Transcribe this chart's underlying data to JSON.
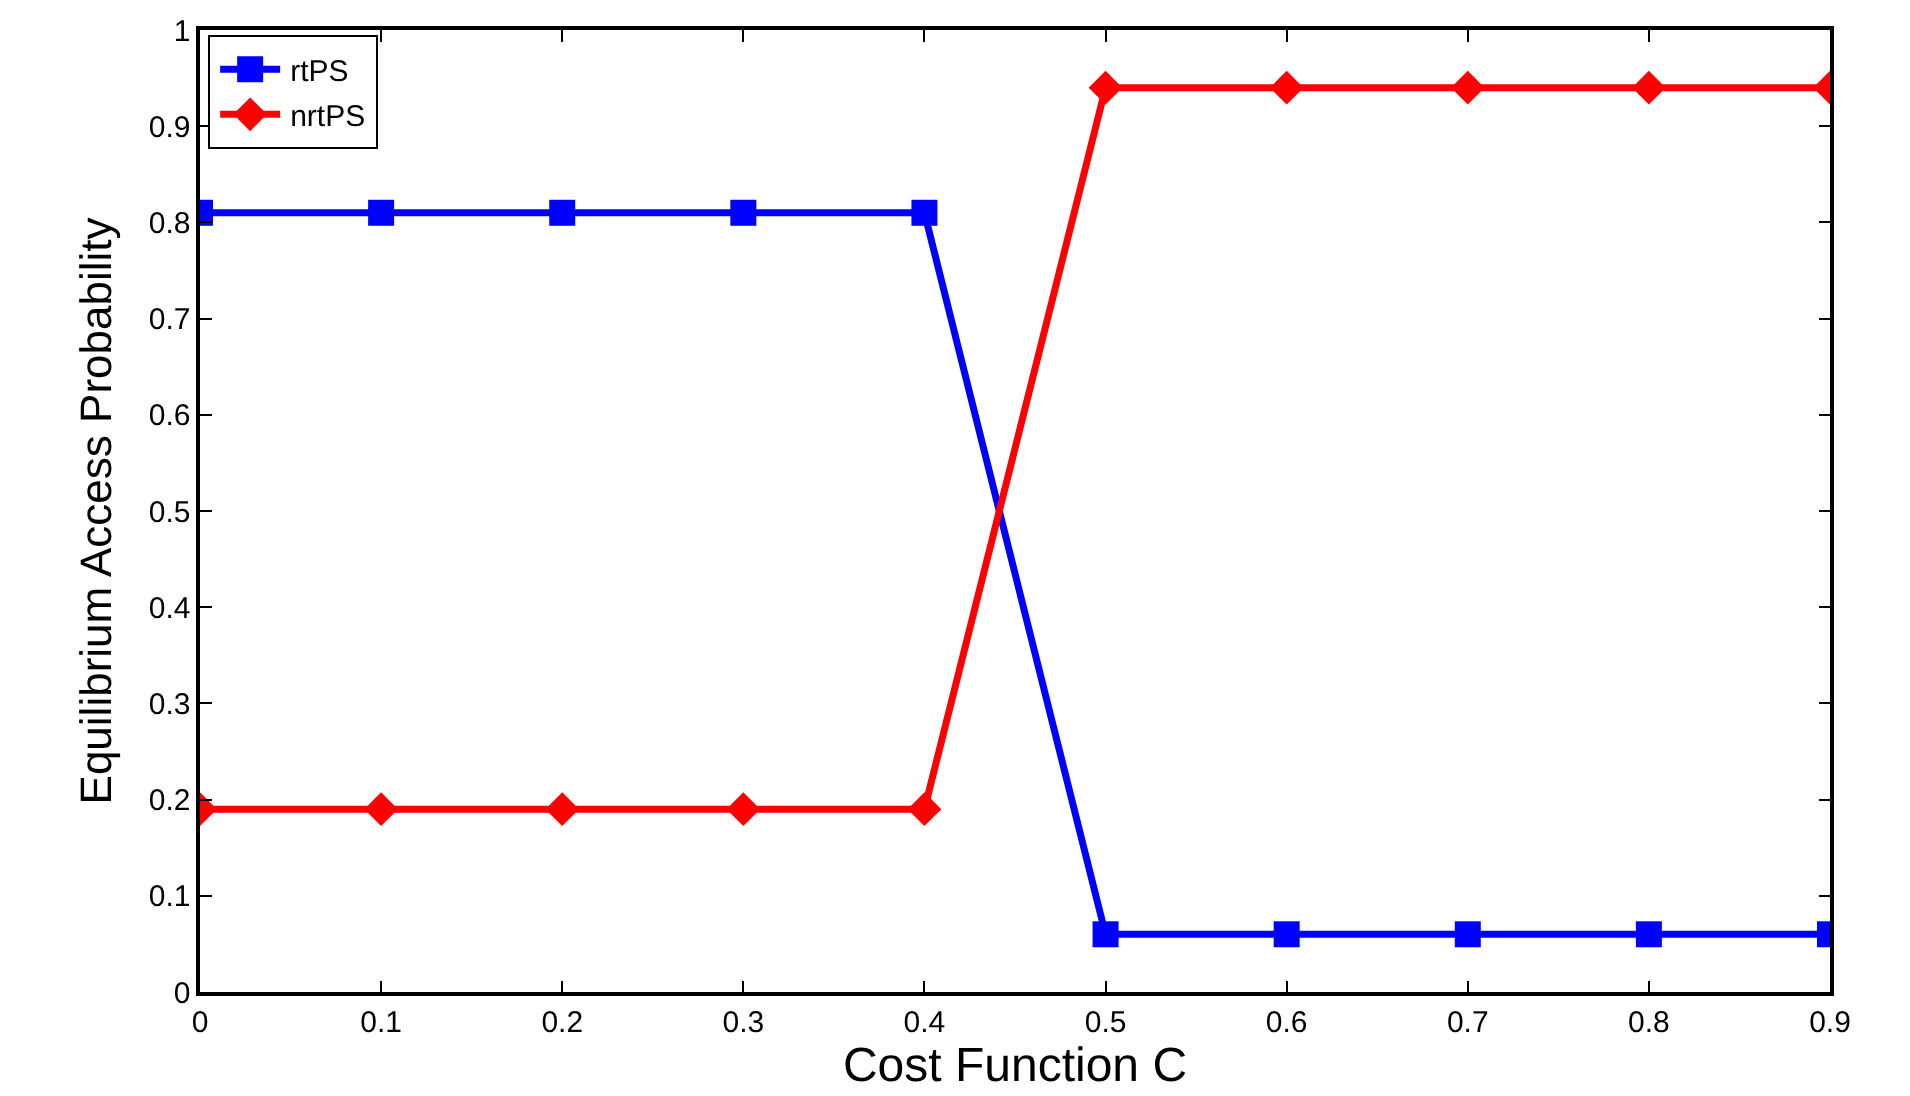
{
  "chart_data": {
    "type": "line",
    "xlabel": "Cost Function C",
    "ylabel": "Equilibrium Access Probability",
    "x": [
      0,
      0.1,
      0.2,
      0.3,
      0.4,
      0.5,
      0.6,
      0.7,
      0.8,
      0.9
    ],
    "series": [
      {
        "name": "rtPS",
        "color": "#0000ff",
        "marker": "square",
        "values": [
          0.81,
          0.81,
          0.81,
          0.81,
          0.81,
          0.06,
          0.06,
          0.06,
          0.06,
          0.06
        ]
      },
      {
        "name": "nrtPS",
        "color": "#ff0000",
        "marker": "diamond",
        "values": [
          0.19,
          0.19,
          0.19,
          0.19,
          0.19,
          0.94,
          0.94,
          0.94,
          0.94,
          0.94
        ]
      }
    ],
    "xlim": [
      0,
      0.9
    ],
    "xticks": [
      0,
      0.1,
      0.2,
      0.3,
      0.4,
      0.5,
      0.6,
      0.7,
      0.8,
      0.9
    ],
    "ylim": [
      0,
      1
    ],
    "yticks": [
      0,
      0.1,
      0.2,
      0.3,
      0.4,
      0.5,
      0.6,
      0.7,
      0.8,
      0.9,
      1
    ],
    "grid": false,
    "legend": "top left",
    "line_style": "solid"
  }
}
